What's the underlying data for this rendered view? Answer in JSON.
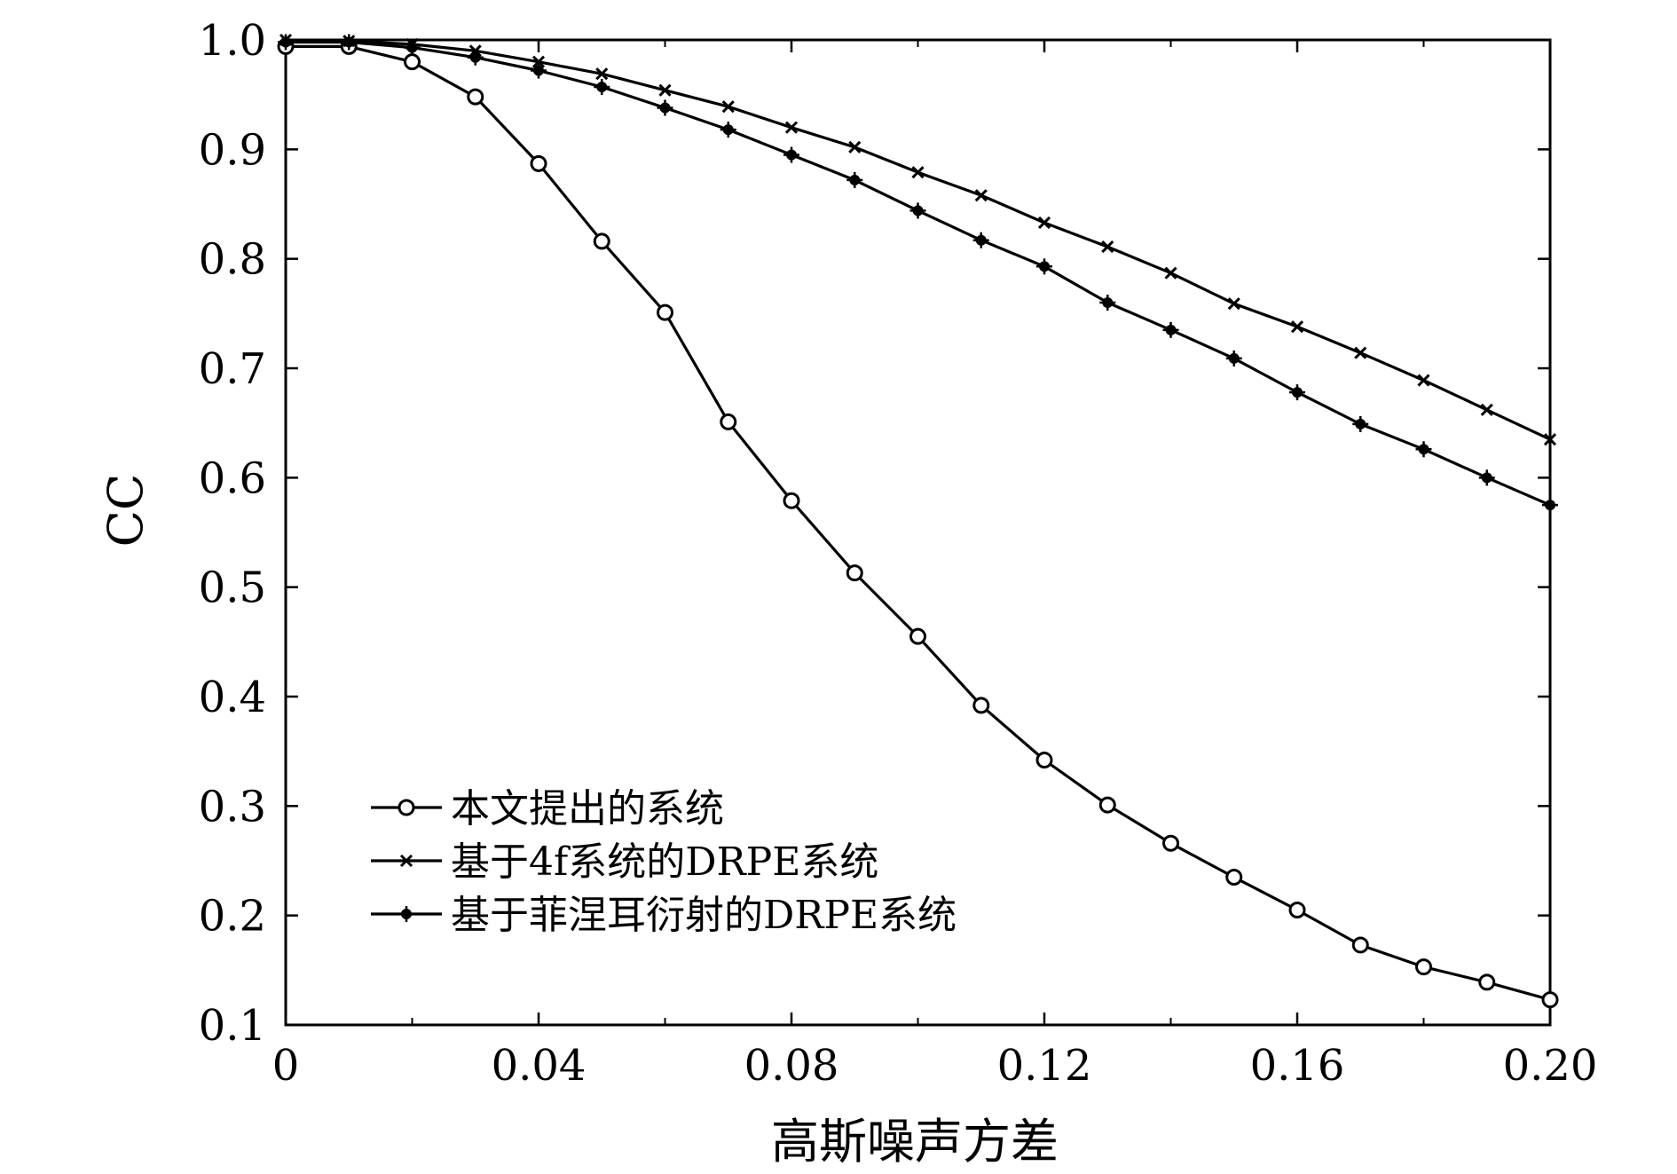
{
  "chart_data": {
    "type": "line",
    "title": "",
    "xlabel": "高斯噪声方差",
    "ylabel": "CC",
    "xlim": [
      0,
      0.2
    ],
    "ylim": [
      0.1,
      1.0
    ],
    "xticks": [
      0,
      0.04,
      0.08,
      0.12,
      0.16,
      0.2
    ],
    "xtick_labels": [
      "0",
      "0.04",
      "0.08",
      "0.12",
      "0.16",
      "0.20"
    ],
    "yticks": [
      0.1,
      0.2,
      0.3,
      0.4,
      0.5,
      0.6,
      0.7,
      0.8,
      0.9,
      1.0
    ],
    "ytick_labels": [
      "0.1",
      "0.2",
      "0.3",
      "0.4",
      "0.5",
      "0.6",
      "0.7",
      "0.8",
      "0.9",
      "1.0"
    ],
    "grid": false,
    "legend_position": "bottom-left",
    "x": [
      0,
      0.01,
      0.02,
      0.03,
      0.04,
      0.05,
      0.06,
      0.07,
      0.08,
      0.09,
      0.1,
      0.11,
      0.12,
      0.13,
      0.14,
      0.15,
      0.16,
      0.17,
      0.18,
      0.19,
      0.2
    ],
    "series": [
      {
        "name": "本文提出的系统",
        "marker": "circle",
        "color": "#000000",
        "values": [
          0.994,
          0.994,
          0.98,
          0.948,
          0.887,
          0.816,
          0.751,
          0.651,
          0.579,
          0.513,
          0.455,
          0.392,
          0.342,
          0.301,
          0.266,
          0.235,
          0.205,
          0.173,
          0.153,
          0.139,
          0.123
        ]
      },
      {
        "name": "基于4f系统的DRPE系统",
        "marker": "x",
        "color": "#000000",
        "values": [
          1.0,
          0.999,
          0.996,
          0.99,
          0.98,
          0.969,
          0.954,
          0.939,
          0.92,
          0.902,
          0.879,
          0.858,
          0.833,
          0.811,
          0.787,
          0.759,
          0.738,
          0.714,
          0.689,
          0.662,
          0.635
        ]
      },
      {
        "name": "基于菲涅耳衍射的DRPE系统",
        "marker": "star",
        "color": "#000000",
        "values": [
          0.998,
          0.998,
          0.993,
          0.984,
          0.972,
          0.957,
          0.938,
          0.918,
          0.895,
          0.872,
          0.844,
          0.817,
          0.793,
          0.76,
          0.735,
          0.709,
          0.678,
          0.649,
          0.626,
          0.6,
          0.575
        ]
      }
    ]
  }
}
